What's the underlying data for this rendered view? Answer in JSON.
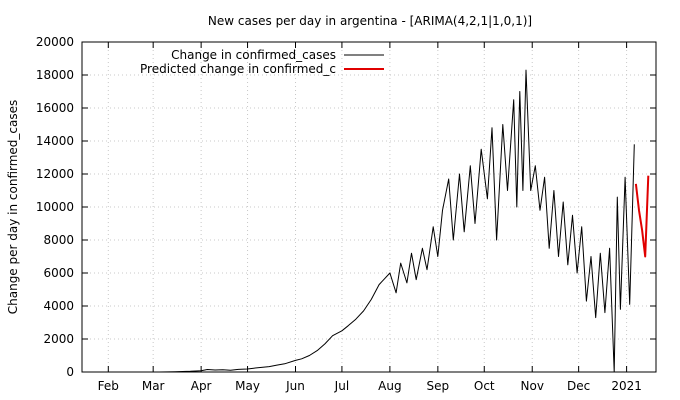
{
  "chart_data": {
    "type": "line",
    "title": "New cases per day in argentina -  [ARIMA(4,2,1|1,0,1)]",
    "xlabel": "",
    "ylabel": "Change per day in confirmed_cases",
    "x_ticks": [
      "Feb",
      "Mar",
      "Apr",
      "May",
      "Jun",
      "Jul",
      "Aug",
      "Sep",
      "Oct",
      "Nov",
      "Dec",
      "2021"
    ],
    "x_tick_dates": [
      "2020-02-01",
      "2020-03-01",
      "2020-04-01",
      "2020-05-01",
      "2020-06-01",
      "2020-07-01",
      "2020-08-01",
      "2020-09-01",
      "2020-10-01",
      "2020-11-01",
      "2020-12-01",
      "2021-01-01"
    ],
    "xlim": [
      "2020-01-15",
      "2021-01-20"
    ],
    "y_ticks": [
      0,
      2000,
      4000,
      6000,
      8000,
      10000,
      12000,
      14000,
      16000,
      18000,
      20000
    ],
    "ylim": [
      0,
      20000
    ],
    "grid": true,
    "legend": "top-left",
    "series": [
      {
        "name": "Change in confirmed_cases",
        "color": "#000000",
        "points": [
          [
            "2020-03-05",
            0
          ],
          [
            "2020-03-15",
            10
          ],
          [
            "2020-03-25",
            40
          ],
          [
            "2020-04-01",
            80
          ],
          [
            "2020-04-05",
            150
          ],
          [
            "2020-04-10",
            120
          ],
          [
            "2020-04-15",
            140
          ],
          [
            "2020-04-20",
            110
          ],
          [
            "2020-04-25",
            160
          ],
          [
            "2020-05-01",
            180
          ],
          [
            "2020-05-05",
            230
          ],
          [
            "2020-05-10",
            280
          ],
          [
            "2020-05-15",
            330
          ],
          [
            "2020-05-20",
            420
          ],
          [
            "2020-05-25",
            500
          ],
          [
            "2020-06-01",
            700
          ],
          [
            "2020-06-05",
            800
          ],
          [
            "2020-06-10",
            1000
          ],
          [
            "2020-06-15",
            1300
          ],
          [
            "2020-06-20",
            1700
          ],
          [
            "2020-06-25",
            2200
          ],
          [
            "2020-07-01",
            2500
          ],
          [
            "2020-07-05",
            2800
          ],
          [
            "2020-07-10",
            3200
          ],
          [
            "2020-07-15",
            3700
          ],
          [
            "2020-07-20",
            4400
          ],
          [
            "2020-07-25",
            5300
          ],
          [
            "2020-08-01",
            6000
          ],
          [
            "2020-08-05",
            4800
          ],
          [
            "2020-08-08",
            6600
          ],
          [
            "2020-08-12",
            5400
          ],
          [
            "2020-08-15",
            7200
          ],
          [
            "2020-08-18",
            5600
          ],
          [
            "2020-08-22",
            7500
          ],
          [
            "2020-08-25",
            6200
          ],
          [
            "2020-08-29",
            8800
          ],
          [
            "2020-09-01",
            7000
          ],
          [
            "2020-09-04",
            9800
          ],
          [
            "2020-09-08",
            11700
          ],
          [
            "2020-09-11",
            8000
          ],
          [
            "2020-09-15",
            12000
          ],
          [
            "2020-09-18",
            8500
          ],
          [
            "2020-09-22",
            12500
          ],
          [
            "2020-09-25",
            9000
          ],
          [
            "2020-09-29",
            13500
          ],
          [
            "2020-10-03",
            10500
          ],
          [
            "2020-10-06",
            14800
          ],
          [
            "2020-10-09",
            8000
          ],
          [
            "2020-10-13",
            15000
          ],
          [
            "2020-10-16",
            11000
          ],
          [
            "2020-10-20",
            16500
          ],
          [
            "2020-10-22",
            10000
          ],
          [
            "2020-10-24",
            17000
          ],
          [
            "2020-10-26",
            11000
          ],
          [
            "2020-10-28",
            18300
          ],
          [
            "2020-10-31",
            11000
          ],
          [
            "2020-11-03",
            12500
          ],
          [
            "2020-11-06",
            9800
          ],
          [
            "2020-11-09",
            11800
          ],
          [
            "2020-11-12",
            7500
          ],
          [
            "2020-11-15",
            11000
          ],
          [
            "2020-11-18",
            7000
          ],
          [
            "2020-11-21",
            10300
          ],
          [
            "2020-11-24",
            6500
          ],
          [
            "2020-11-27",
            9500
          ],
          [
            "2020-11-30",
            6000
          ],
          [
            "2020-12-03",
            8800
          ],
          [
            "2020-12-06",
            4300
          ],
          [
            "2020-12-09",
            7000
          ],
          [
            "2020-12-12",
            3300
          ],
          [
            "2020-12-15",
            7200
          ],
          [
            "2020-12-18",
            3600
          ],
          [
            "2020-12-21",
            7500
          ],
          [
            "2020-12-24",
            0
          ],
          [
            "2020-12-26",
            10600
          ],
          [
            "2020-12-28",
            3800
          ],
          [
            "2020-12-31",
            11800
          ],
          [
            "2021-01-03",
            4100
          ],
          [
            "2021-01-06",
            13800
          ]
        ]
      },
      {
        "name": "Predicted change in confirmed_c",
        "color": "#e00000",
        "points": [
          [
            "2021-01-07",
            11400
          ],
          [
            "2021-01-09",
            9800
          ],
          [
            "2021-01-11",
            8600
          ],
          [
            "2021-01-13",
            7000
          ],
          [
            "2021-01-15",
            11900
          ]
        ]
      }
    ]
  }
}
